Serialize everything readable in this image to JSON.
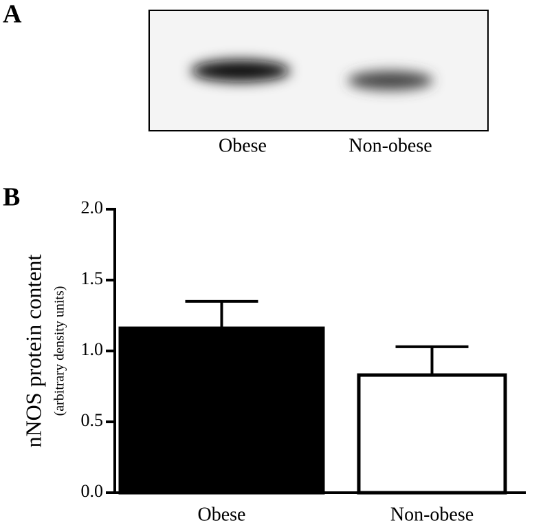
{
  "panel_a": {
    "label": "A",
    "lanes": [
      "Obese",
      "Non-obese"
    ]
  },
  "chart_data": {
    "type": "bar",
    "panel_label": "B",
    "y_label": "nNOS protein content",
    "y_sublabel": "(arbitrary density units)",
    "categories": [
      "Obese",
      "Non-obese"
    ],
    "values": [
      1.16,
      0.83
    ],
    "errors": [
      0.19,
      0.2
    ],
    "colors": [
      "#000000",
      "#ffffff"
    ],
    "ylim": [
      0,
      2.0
    ],
    "yticks": [
      {
        "value": 0,
        "label": "0.0"
      },
      {
        "value": 0.5,
        "label": "0.5"
      },
      {
        "value": 1,
        "label": "1.0"
      },
      {
        "value": 1.5,
        "label": "1.5"
      },
      {
        "value": 2,
        "label": "2.0"
      }
    ]
  }
}
